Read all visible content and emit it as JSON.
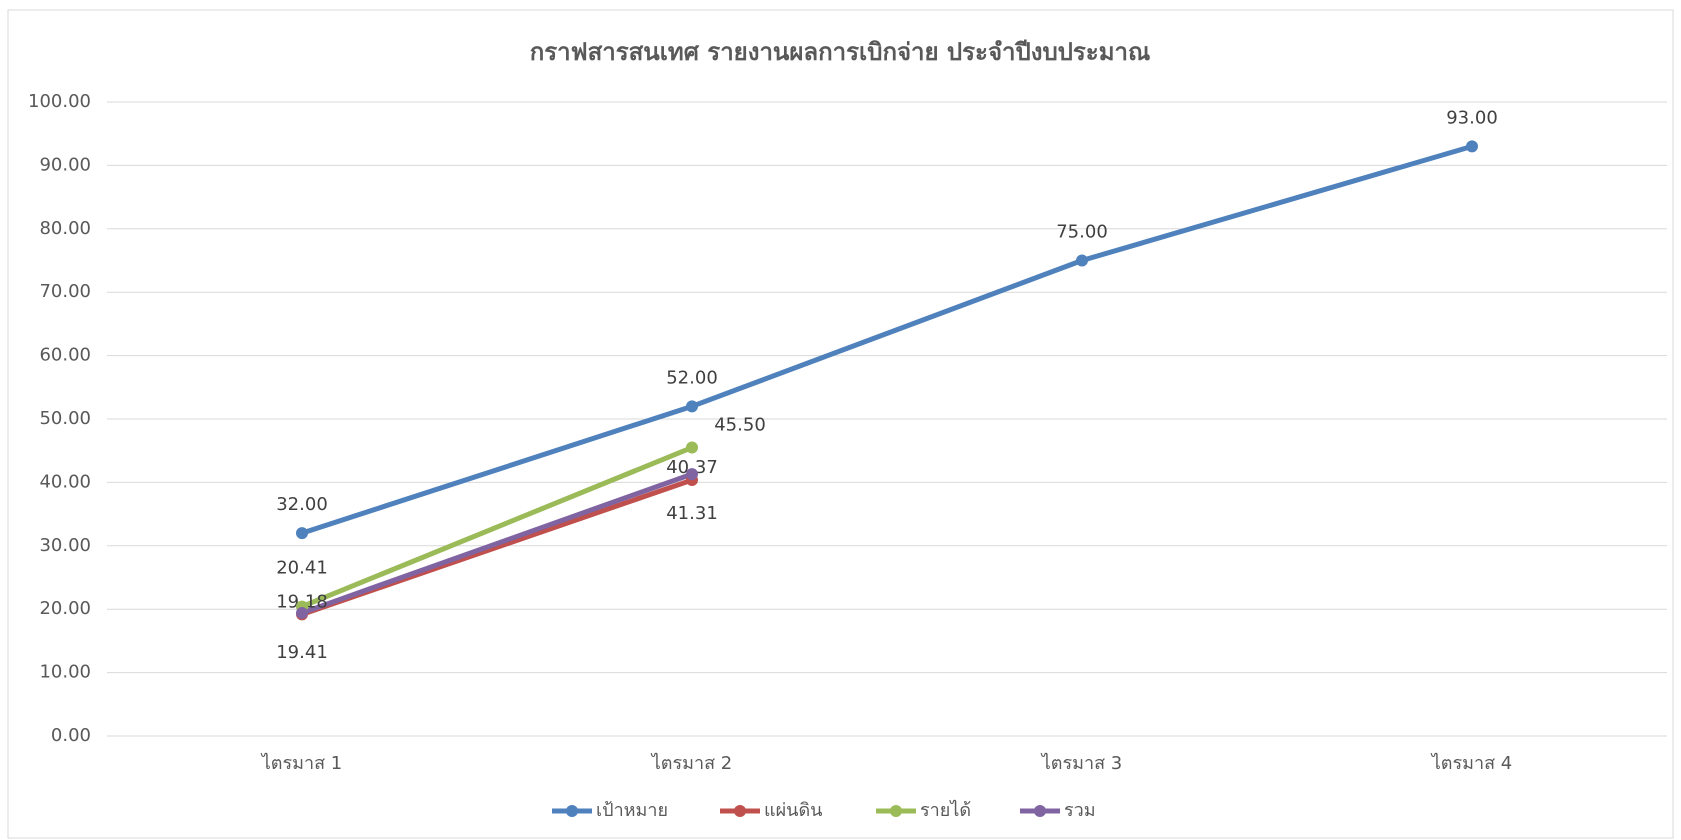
{
  "chart_data": {
    "type": "line",
    "title": "กราฟสารสนเทศ รายงานผลการเบิกจ่าย ประจำปีงบประมาณ",
    "categories": [
      "ไตรมาส 1",
      "ไตรมาส 2",
      "ไตรมาส 3",
      "ไตรมาส 4"
    ],
    "series": [
      {
        "name": "เป้าหมาย",
        "color": "#4f81bd",
        "values": [
          32,
          52,
          75,
          93
        ],
        "value_labels": [
          "32.00",
          "52.00",
          "75.00",
          "93.00"
        ]
      },
      {
        "name": "แผ่นดิน",
        "color": "#c0504d",
        "values": [
          19.18,
          40.37,
          null,
          null
        ],
        "value_labels": [
          "19.18",
          "40.37",
          null,
          null
        ]
      },
      {
        "name": "รายได้",
        "color": "#9bbb59",
        "values": [
          20.41,
          45.5,
          null,
          null
        ],
        "value_labels": [
          "20.41",
          "45.50",
          null,
          null
        ]
      },
      {
        "name": "รวม",
        "color": "#8064a2",
        "values": [
          19.41,
          41.31,
          null,
          null
        ],
        "value_labels": [
          "19.41",
          "41.31",
          null,
          null
        ]
      }
    ],
    "ylim": [
      0,
      100
    ],
    "yticks": [
      {
        "value": 0,
        "label": "0.00"
      },
      {
        "value": 10,
        "label": "10.00"
      },
      {
        "value": 20,
        "label": "20.00"
      },
      {
        "value": 30,
        "label": "30.00"
      },
      {
        "value": 40,
        "label": "40.00"
      },
      {
        "value": 50,
        "label": "50.00"
      },
      {
        "value": 60,
        "label": "60.00"
      },
      {
        "value": 70,
        "label": "70.00"
      },
      {
        "value": 80,
        "label": "80.00"
      },
      {
        "value": 90,
        "label": "90.00"
      },
      {
        "value": 100,
        "label": "100.00"
      }
    ],
    "grid": true,
    "legend": "bottom"
  }
}
